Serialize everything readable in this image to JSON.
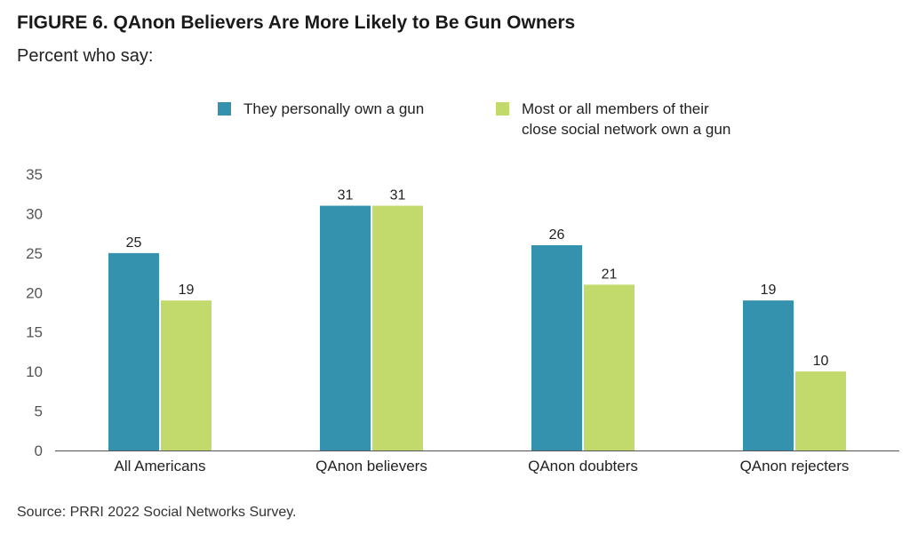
{
  "title": "FIGURE 6.  QAnon Believers Are More Likely to Be Gun Owners",
  "subtitle": "Percent who say:",
  "source": "Source: PRRI 2022 Social Networks Survey.",
  "legend": [
    {
      "label": "They personally own a gun",
      "color": "#3592ae"
    },
    {
      "label": "Most or all members of their\nclose social network own a gun",
      "color": "#c2d96c"
    }
  ],
  "chart_data": {
    "type": "bar",
    "categories": [
      "All Americans",
      "QAnon believers",
      "QAnon doubters",
      "QAnon rejecters"
    ],
    "series": [
      {
        "name": "They personally own a gun",
        "color": "#3592ae",
        "values": [
          25,
          31,
          26,
          19
        ]
      },
      {
        "name": "Most or all members of their close social network own a gun",
        "color": "#c2d96c",
        "values": [
          19,
          31,
          21,
          10
        ]
      }
    ],
    "ylim": [
      0,
      35
    ],
    "yticks": [
      0,
      5,
      10,
      15,
      20,
      25,
      30,
      35
    ],
    "grid": false,
    "legend_position": "top-center",
    "data_labels": true
  }
}
